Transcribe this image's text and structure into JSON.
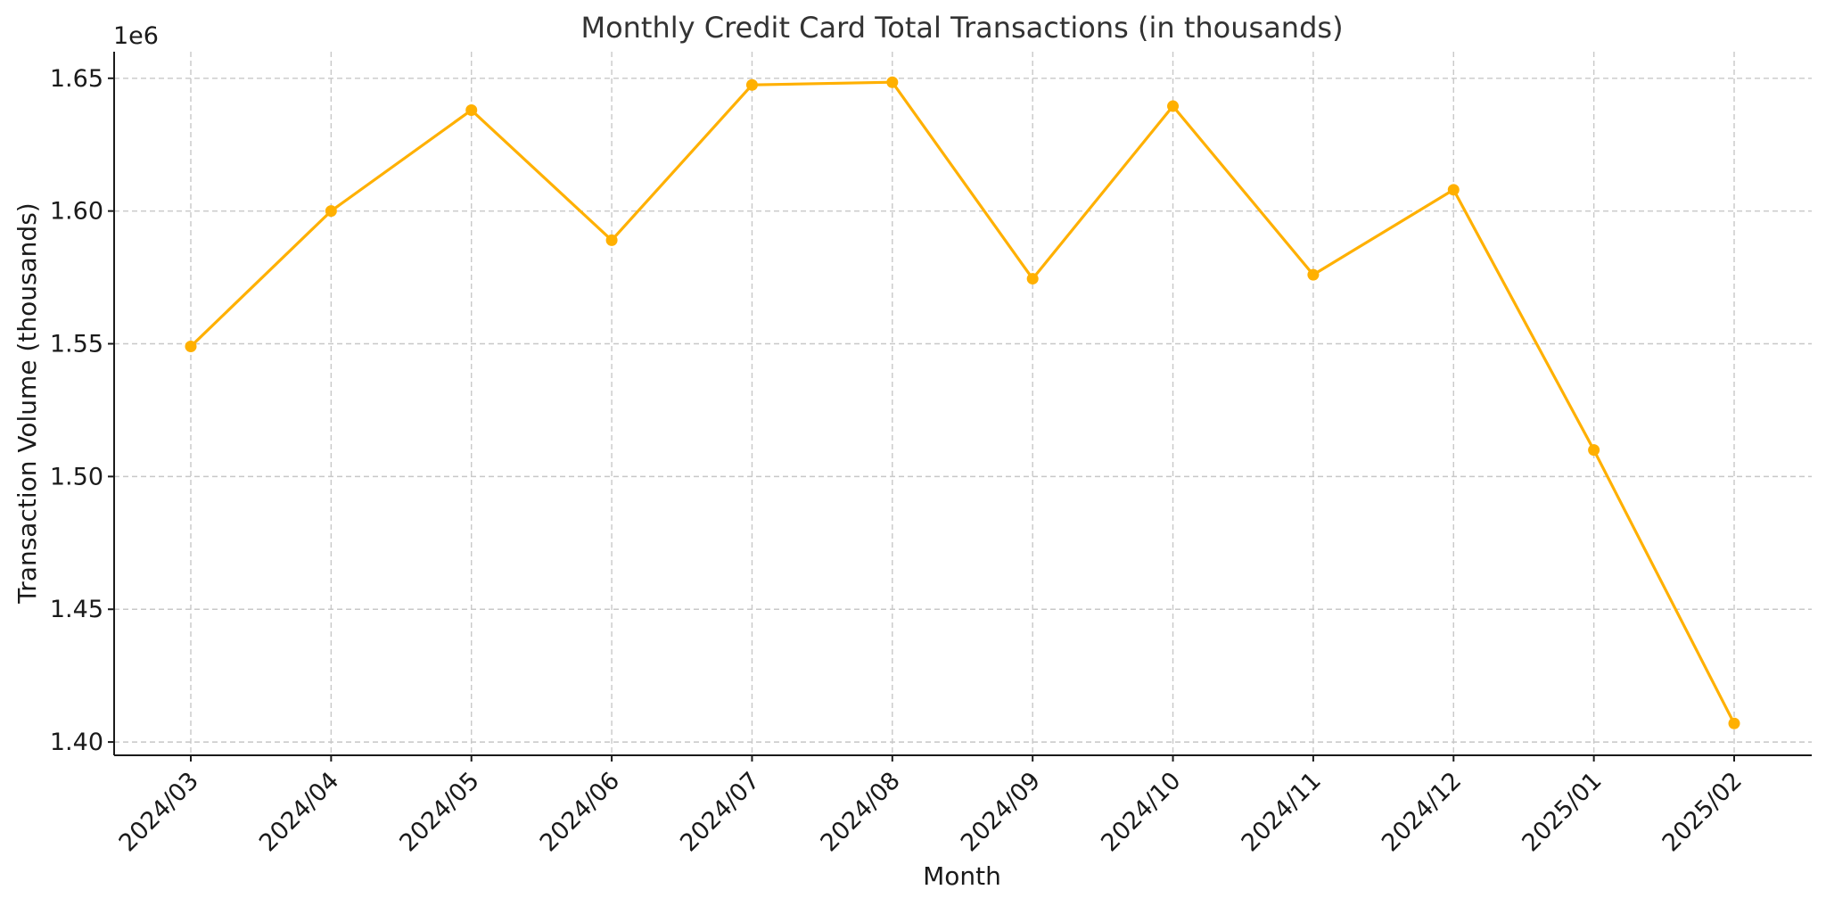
{
  "chart_data": {
    "type": "line",
    "title": "Monthly Credit Card Total Transactions (in thousands)",
    "xlabel": "Month",
    "ylabel": "Transaction Volume (thousands)",
    "y_offset_label": "1e6",
    "categories": [
      "2024/03",
      "2024/04",
      "2024/05",
      "2024/06",
      "2024/07",
      "2024/08",
      "2024/09",
      "2024/10",
      "2024/11",
      "2024/12",
      "2025/01",
      "2025/02"
    ],
    "series": [
      {
        "values": [
          1549000,
          1600000,
          1638000,
          1589000,
          1647500,
          1648500,
          1574500,
          1639500,
          1576000,
          1608000,
          1510000,
          1407000
        ],
        "color": "#FFB000"
      }
    ],
    "ylim": [
      1395000,
      1660000
    ],
    "yticks": [
      1400000,
      1450000,
      1500000,
      1550000,
      1600000,
      1650000
    ],
    "ytick_labels": [
      "1.40",
      "1.45",
      "1.50",
      "1.55",
      "1.60",
      "1.65"
    ],
    "grid": true,
    "marker": "circle"
  }
}
